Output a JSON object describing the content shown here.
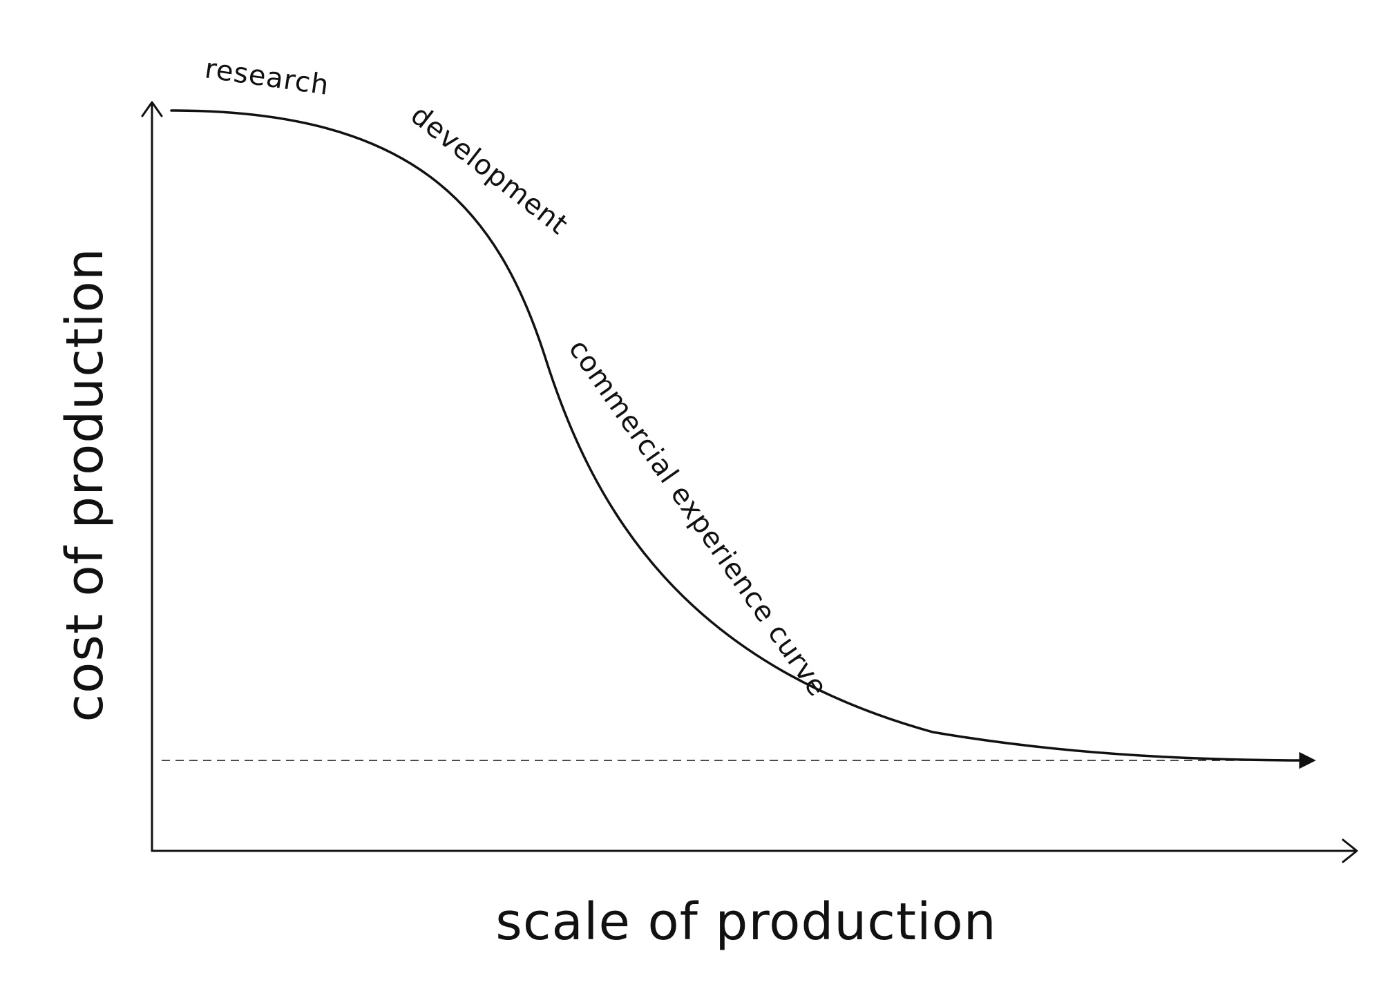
{
  "colors": {
    "ink": "#111111",
    "background": "#ffffff"
  },
  "diagram": {
    "x_axis_label": "scale of production",
    "y_axis_label": "cost of production",
    "curve_labels": {
      "research": "research",
      "development": "development",
      "commercial": "commercial experience curve"
    },
    "curve_shape": "sigmoid-decline",
    "baseline": "dashed",
    "curve_end": "arrow"
  }
}
